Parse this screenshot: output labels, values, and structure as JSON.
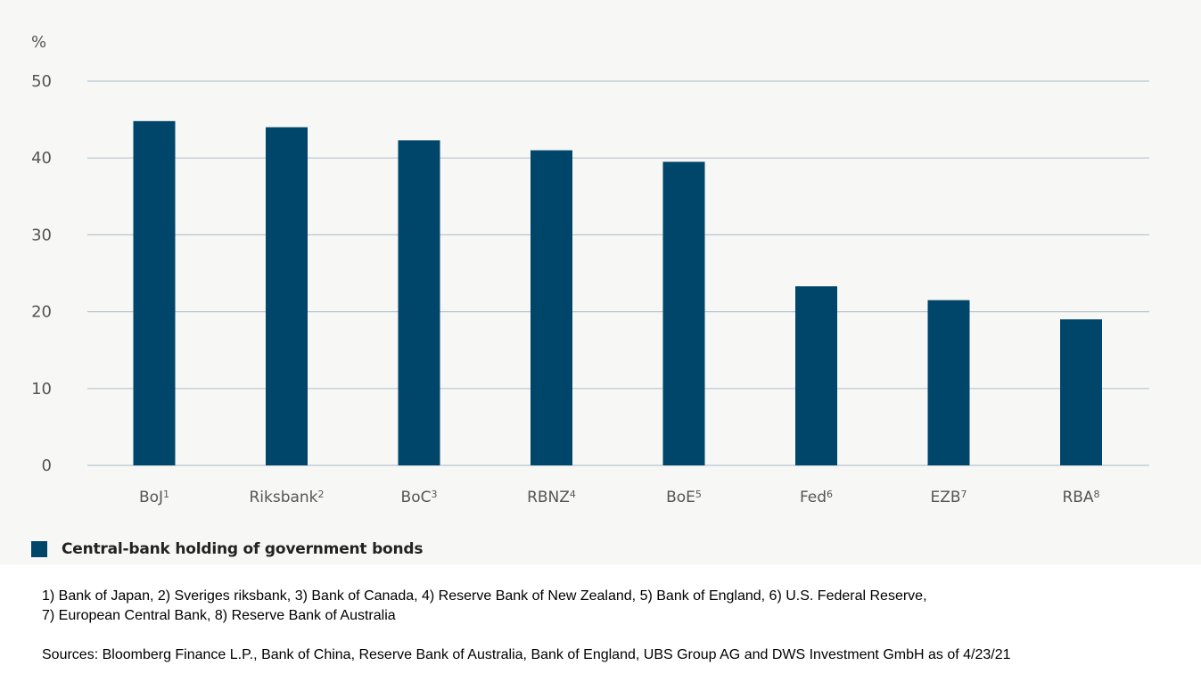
{
  "chart_data": {
    "type": "bar",
    "y_unit_label": "%",
    "categories": [
      "BoJ",
      "Riksbank",
      "BoC",
      "RBNZ",
      "BoE",
      "Fed",
      "EZB",
      "RBA"
    ],
    "footnote_markers": [
      "1",
      "2",
      "3",
      "4",
      "5",
      "6",
      "7",
      "8"
    ],
    "series": [
      {
        "name": "Central-bank holding of government bonds",
        "values": [
          44.8,
          44.0,
          42.3,
          41.0,
          39.5,
          23.3,
          21.5,
          19.0
        ]
      }
    ],
    "ylim": [
      0,
      50
    ],
    "yticks": [
      0,
      10,
      20,
      30,
      40,
      50
    ],
    "grid": true,
    "legend_placement": "bottom-left",
    "bar_color": "#00456a"
  },
  "footnotes": {
    "line1": "1) Bank of Japan, 2) Sveriges riksbank, 3) Bank of Canada, 4) Reserve Bank of New Zealand, 5) Bank of England, 6) U.S. Federal Reserve,",
    "line2": "7) European Central Bank, 8) Reserve Bank of Australia"
  },
  "sources": "Sources: Bloomberg Finance L.P., Bank of China, Reserve Bank of Australia, Bank of England, UBS Group AG and DWS Investment GmbH as of 4/23/21"
}
